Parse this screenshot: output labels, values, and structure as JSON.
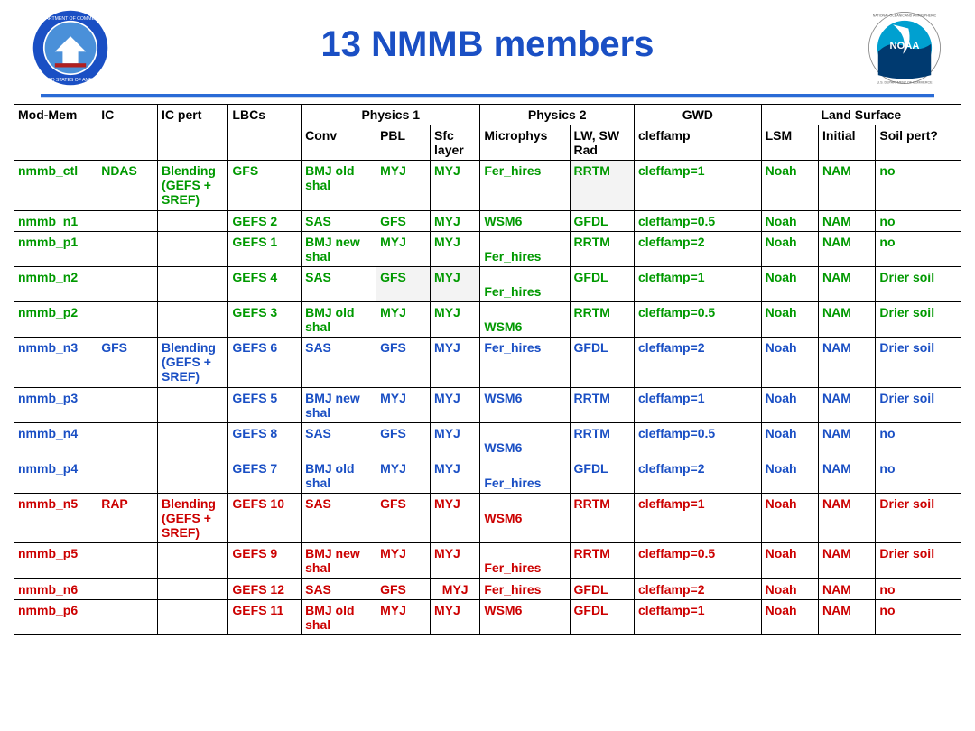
{
  "title": "13 NMMB members",
  "colors": {
    "title": "#1a4fc4",
    "green": "#009900",
    "blue": "#1a4fc4",
    "red": "#cc0000",
    "black": "#000000",
    "divider": "#2a6bd6",
    "shade": "#f3f3f3"
  },
  "header_groups": {
    "phys1": "Physics 1",
    "phys2": "Physics 2",
    "gwd": "GWD",
    "land": "Land Surface"
  },
  "columns": {
    "mod": "Mod-Mem",
    "ic": "IC",
    "icp": "IC pert",
    "lbc": "LBCs",
    "conv": "Conv",
    "pbl": "PBL",
    "sfc": "Sfc layer",
    "mp": "Microphys",
    "rad": "LW, SW Rad",
    "gwd": "cleffamp",
    "lsm": "LSM",
    "init": "Initial",
    "soil": "Soil pert?"
  },
  "rows": [
    {
      "color": "green",
      "mod": "nmmb_ctl",
      "ic": "NDAS",
      "icp": "Blending (GEFS + SREF)",
      "lbc": "GFS",
      "conv": "BMJ old shal",
      "pbl": "MYJ",
      "sfc": "MYJ",
      "mp": "Fer_hires",
      "rad": "RRTM",
      "radShade": true,
      "gwd": "cleffamp=1",
      "lsm": "Noah",
      "init": "NAM",
      "soil": "no"
    },
    {
      "color": "green",
      "mod": "nmmb_n1",
      "ic": "",
      "icp": "",
      "lbc": "GEFS 2",
      "conv": "SAS",
      "pbl": "GFS",
      "sfc": "MYJ",
      "mp": "WSM6",
      "rad": "GFDL",
      "gwd": "cleffamp=0.5",
      "lsm": "Noah",
      "init": "NAM",
      "soil": "no"
    },
    {
      "color": "green",
      "mod": "nmmb_p1",
      "ic": "",
      "icp": "",
      "lbc": "GEFS 1",
      "conv": "BMJ new shal",
      "pbl": "MYJ",
      "sfc": "MYJ",
      "mp": "\nFer_hires",
      "rad": "RRTM",
      "gwd": "cleffamp=2",
      "lsm": "Noah",
      "init": "NAM",
      "soil": "no"
    },
    {
      "color": "green",
      "mod": "nmmb_n2",
      "ic": "",
      "icp": "",
      "lbc": "GEFS 4",
      "conv": "SAS",
      "pbl": "GFS",
      "pblShade": true,
      "sfc": "MYJ",
      "sfcShade": true,
      "mp": "\nFer_hires",
      "rad": "GFDL",
      "gwd": "cleffamp=1",
      "lsm": "Noah",
      "init": "NAM",
      "soil": "Drier soil"
    },
    {
      "color": "green",
      "mod": "nmmb_p2",
      "ic": "",
      "icp": "",
      "lbc": "GEFS 3",
      "conv": "BMJ old shal",
      "pbl": "MYJ",
      "sfc": "MYJ",
      "mp": "\nWSM6",
      "rad": "RRTM",
      "gwd": "cleffamp=0.5",
      "lsm": "Noah",
      "init": "NAM",
      "soil": "Drier soil"
    },
    {
      "color": "blue",
      "mod": "nmmb_n3",
      "ic": "GFS",
      "icp": "Blending (GEFS + SREF)",
      "lbc": "GEFS 6",
      "conv": "SAS",
      "pbl": "GFS",
      "sfc": "MYJ",
      "mp": "Fer_hires",
      "rad": "GFDL",
      "gwd": "cleffamp=2",
      "lsm": "Noah",
      "init": "NAM",
      "soil": "Drier soil"
    },
    {
      "color": "blue",
      "mod": "nmmb_p3",
      "ic": "",
      "icp": "",
      "lbc": "GEFS 5",
      "conv": "BMJ new shal",
      "pbl": "MYJ",
      "sfc": "MYJ",
      "mp": "WSM6",
      "rad": "RRTM",
      "gwd": "cleffamp=1",
      "lsm": "Noah",
      "init": "NAM",
      "soil": "Drier soil"
    },
    {
      "color": "blue",
      "mod": "nmmb_n4",
      "ic": "",
      "icp": "",
      "lbc": "GEFS 8",
      "conv": "SAS",
      "pbl": "GFS",
      "sfc": "MYJ",
      "mp": "\nWSM6",
      "rad": "RRTM",
      "gwd": "cleffamp=0.5",
      "lsm": "Noah",
      "init": "NAM",
      "soil": "no"
    },
    {
      "color": "blue",
      "mod": "nmmb_p4",
      "ic": "",
      "icp": "",
      "lbc": "GEFS 7",
      "conv": "BMJ old shal",
      "pbl": "MYJ",
      "sfc": "MYJ",
      "mp": "\nFer_hires",
      "rad": "GFDL",
      "gwd": "cleffamp=2",
      "lsm": "Noah",
      "init": "NAM",
      "soil": "no"
    },
    {
      "color": "red",
      "mod": "nmmb_n5",
      "ic": "RAP",
      "icp": "Blending (GEFS + SREF)",
      "lbc": "GEFS 10",
      "conv": "SAS",
      "pbl": "GFS",
      "sfc": "MYJ",
      "mp": "\nWSM6",
      "rad": "RRTM",
      "gwd": "cleffamp=1",
      "lsm": "Noah",
      "init": "NAM",
      "soil": "Drier soil"
    },
    {
      "color": "red",
      "mod": "nmmb_p5",
      "ic": "",
      "icp": "",
      "lbc": "GEFS 9",
      "conv": "BMJ new shal",
      "pbl": "MYJ",
      "sfc": "MYJ",
      "mp": "\nFer_hires",
      "rad": "RRTM",
      "gwd": "cleffamp=0.5",
      "lsm": "Noah",
      "init": "NAM",
      "soil": "Drier soil"
    },
    {
      "color": "red",
      "mod": "nmmb_n6",
      "ic": "",
      "icp": "",
      "lbc": "GEFS 12",
      "conv": "SAS",
      "pbl": "GFS",
      "sfc": "MYJ",
      "sfcCenter": true,
      "mp": "Fer_hires",
      "rad": "GFDL",
      "gwd": "cleffamp=2",
      "lsm": "Noah",
      "init": "NAM",
      "soil": "no"
    },
    {
      "color": "red",
      "mod": "nmmb_p6",
      "ic": "",
      "icp": "",
      "lbc": "GEFS 11",
      "conv": "BMJ old shal",
      "pbl": "MYJ",
      "sfc": "MYJ",
      "mp": "WSM6",
      "rad": "GFDL",
      "gwd": "cleffamp=1",
      "lsm": "Noah",
      "init": "NAM",
      "soil": "no"
    }
  ]
}
